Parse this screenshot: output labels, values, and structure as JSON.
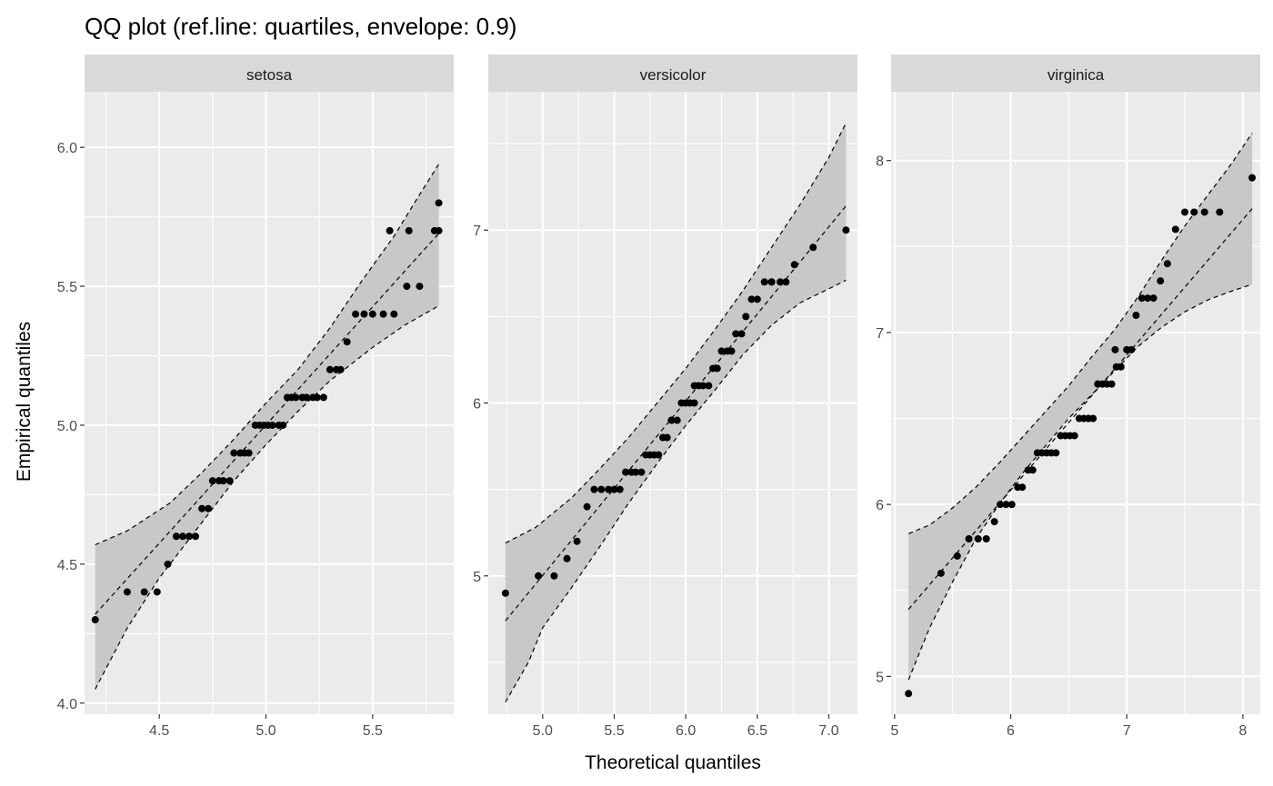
{
  "chart_data": {
    "type": "scatter",
    "title": "QQ plot (ref.line: quartiles, envelope: 0.9)",
    "xlabel": "Theoretical quantiles",
    "ylabel": "Empirical quantiles",
    "grid": true,
    "legend": "none",
    "colors": {
      "panel_bg": "#ebebeb",
      "strip_bg": "#d9d9d9",
      "grid": "#ffffff",
      "point": "#000000",
      "envelope": "#c8c8c8",
      "line": "#000000"
    },
    "panels": [
      {
        "name": "setosa",
        "xlim": [
          4.15,
          5.88
        ],
        "ylim": [
          3.96,
          6.2
        ],
        "xticks": [
          4.5,
          5.0,
          5.5
        ],
        "xtick_labels": [
          "4.5",
          "5.0",
          "5.5"
        ],
        "yticks": [
          4.0,
          4.5,
          5.0,
          5.5,
          6.0
        ],
        "ytick_labels": [
          "4.0",
          "4.5",
          "5.0",
          "5.5",
          "6.0"
        ],
        "ref_line": {
          "x": [
            4.2,
            5.81
          ],
          "y": [
            4.32,
            5.69
          ]
        },
        "envelope_upper": [
          [
            4.2,
            4.57
          ],
          [
            4.35,
            4.62
          ],
          [
            4.55,
            4.72
          ],
          [
            4.7,
            4.83
          ],
          [
            4.85,
            4.95
          ],
          [
            5.0,
            5.08
          ],
          [
            5.15,
            5.2
          ],
          [
            5.3,
            5.35
          ],
          [
            5.45,
            5.52
          ],
          [
            5.6,
            5.68
          ],
          [
            5.72,
            5.83
          ],
          [
            5.81,
            5.94
          ]
        ],
        "envelope_lower": [
          [
            4.2,
            4.05
          ],
          [
            4.35,
            4.27
          ],
          [
            4.5,
            4.45
          ],
          [
            4.7,
            4.65
          ],
          [
            4.85,
            4.8
          ],
          [
            5.0,
            4.93
          ],
          [
            5.15,
            5.05
          ],
          [
            5.3,
            5.16
          ],
          [
            5.5,
            5.28
          ],
          [
            5.65,
            5.36
          ],
          [
            5.81,
            5.43
          ]
        ],
        "points": [
          [
            4.2,
            4.3
          ],
          [
            4.35,
            4.4
          ],
          [
            4.43,
            4.4
          ],
          [
            4.49,
            4.4
          ],
          [
            4.54,
            4.5
          ],
          [
            4.58,
            4.6
          ],
          [
            4.61,
            4.6
          ],
          [
            4.64,
            4.6
          ],
          [
            4.67,
            4.6
          ],
          [
            4.7,
            4.7
          ],
          [
            4.73,
            4.7
          ],
          [
            4.75,
            4.8
          ],
          [
            4.78,
            4.8
          ],
          [
            4.8,
            4.8
          ],
          [
            4.83,
            4.8
          ],
          [
            4.85,
            4.9
          ],
          [
            4.88,
            4.9
          ],
          [
            4.9,
            4.9
          ],
          [
            4.92,
            4.9
          ],
          [
            4.95,
            5.0
          ],
          [
            4.97,
            5.0
          ],
          [
            4.99,
            5.0
          ],
          [
            5.01,
            5.0
          ],
          [
            5.03,
            5.0
          ],
          [
            5.06,
            5.0
          ],
          [
            5.08,
            5.0
          ],
          [
            5.1,
            5.1
          ],
          [
            5.12,
            5.1
          ],
          [
            5.14,
            5.1
          ],
          [
            5.17,
            5.1
          ],
          [
            5.19,
            5.1
          ],
          [
            5.22,
            5.1
          ],
          [
            5.24,
            5.1
          ],
          [
            5.27,
            5.1
          ],
          [
            5.3,
            5.2
          ],
          [
            5.33,
            5.2
          ],
          [
            5.35,
            5.2
          ],
          [
            5.38,
            5.3
          ],
          [
            5.42,
            5.4
          ],
          [
            5.46,
            5.4
          ],
          [
            5.5,
            5.4
          ],
          [
            5.55,
            5.4
          ],
          [
            5.6,
            5.4
          ],
          [
            5.66,
            5.5
          ],
          [
            5.72,
            5.5
          ],
          [
            5.79,
            5.7
          ],
          [
            5.81,
            5.7
          ],
          [
            5.58,
            5.7
          ],
          [
            5.67,
            5.7
          ],
          [
            5.81,
            5.8
          ]
        ]
      },
      {
        "name": "versicolor",
        "xlim": [
          4.62,
          7.2
        ],
        "ylim": [
          4.2,
          7.8
        ],
        "xticks": [
          5.0,
          5.5,
          6.0,
          6.5,
          7.0
        ],
        "xtick_labels": [
          "5.0",
          "5.5",
          "6.0",
          "6.5",
          "7.0"
        ],
        "yticks": [
          5,
          6,
          7
        ],
        "ytick_labels": [
          "5",
          "6",
          "7"
        ],
        "ref_line": {
          "x": [
            4.74,
            7.12
          ],
          "y": [
            4.74,
            7.14
          ]
        },
        "envelope_upper": [
          [
            4.74,
            5.19
          ],
          [
            4.95,
            5.28
          ],
          [
            5.2,
            5.45
          ],
          [
            5.4,
            5.62
          ],
          [
            5.6,
            5.8
          ],
          [
            5.8,
            6.0
          ],
          [
            6.0,
            6.2
          ],
          [
            6.2,
            6.42
          ],
          [
            6.4,
            6.65
          ],
          [
            6.6,
            6.9
          ],
          [
            6.8,
            7.15
          ],
          [
            7.0,
            7.42
          ],
          [
            7.12,
            7.62
          ]
        ],
        "envelope_lower": [
          [
            4.74,
            4.27
          ],
          [
            4.9,
            4.5
          ],
          [
            5.0,
            4.7
          ],
          [
            5.2,
            4.93
          ],
          [
            5.4,
            5.17
          ],
          [
            5.6,
            5.42
          ],
          [
            5.8,
            5.65
          ],
          [
            6.0,
            5.87
          ],
          [
            6.2,
            6.07
          ],
          [
            6.4,
            6.28
          ],
          [
            6.6,
            6.45
          ],
          [
            6.8,
            6.58
          ],
          [
            7.0,
            6.66
          ],
          [
            7.12,
            6.71
          ]
        ],
        "points": [
          [
            4.74,
            4.9
          ],
          [
            4.97,
            5.0
          ],
          [
            5.08,
            5.0
          ],
          [
            5.17,
            5.1
          ],
          [
            5.24,
            5.2
          ],
          [
            5.31,
            5.4
          ],
          [
            5.36,
            5.5
          ],
          [
            5.41,
            5.5
          ],
          [
            5.46,
            5.5
          ],
          [
            5.5,
            5.5
          ],
          [
            5.54,
            5.5
          ],
          [
            5.58,
            5.6
          ],
          [
            5.62,
            5.6
          ],
          [
            5.65,
            5.6
          ],
          [
            5.69,
            5.6
          ],
          [
            5.72,
            5.7
          ],
          [
            5.75,
            5.7
          ],
          [
            5.78,
            5.7
          ],
          [
            5.81,
            5.7
          ],
          [
            5.84,
            5.8
          ],
          [
            5.87,
            5.8
          ],
          [
            5.9,
            5.9
          ],
          [
            5.94,
            5.9
          ],
          [
            5.97,
            6.0
          ],
          [
            6.0,
            6.0
          ],
          [
            6.03,
            6.0
          ],
          [
            6.06,
            6.0
          ],
          [
            6.09,
            6.1
          ],
          [
            6.12,
            6.1
          ],
          [
            6.16,
            6.1
          ],
          [
            6.19,
            6.2
          ],
          [
            6.22,
            6.2
          ],
          [
            6.25,
            6.3
          ],
          [
            6.29,
            6.3
          ],
          [
            6.32,
            6.3
          ],
          [
            6.35,
            6.4
          ],
          [
            6.39,
            6.4
          ],
          [
            6.42,
            6.5
          ],
          [
            6.46,
            6.6
          ],
          [
            6.5,
            6.6
          ],
          [
            6.55,
            6.7
          ],
          [
            6.6,
            6.7
          ],
          [
            6.66,
            6.7
          ],
          [
            6.76,
            6.8
          ],
          [
            6.89,
            6.9
          ],
          [
            7.12,
            7.0
          ],
          [
            6.6,
            6.7
          ],
          [
            6.7,
            6.7
          ],
          [
            5.9,
            5.9
          ],
          [
            6.06,
            6.1
          ]
        ]
      },
      {
        "name": "virginica",
        "xlim": [
          4.97,
          8.15
        ],
        "ylim": [
          4.78,
          8.4
        ],
        "xticks": [
          5,
          6,
          7,
          8
        ],
        "xtick_labels": [
          "5",
          "6",
          "7",
          "8"
        ],
        "yticks": [
          5,
          6,
          7,
          8
        ],
        "ytick_labels": [
          "5",
          "6",
          "7",
          "8"
        ],
        "ref_line": {
          "x": [
            5.12,
            8.08
          ],
          "y": [
            5.39,
            7.72
          ]
        },
        "envelope_upper": [
          [
            5.12,
            5.83
          ],
          [
            5.3,
            5.88
          ],
          [
            5.5,
            5.98
          ],
          [
            5.7,
            6.1
          ],
          [
            5.9,
            6.24
          ],
          [
            6.1,
            6.39
          ],
          [
            6.3,
            6.54
          ],
          [
            6.5,
            6.69
          ],
          [
            6.7,
            6.86
          ],
          [
            6.9,
            7.02
          ],
          [
            7.1,
            7.21
          ],
          [
            7.3,
            7.42
          ],
          [
            7.5,
            7.62
          ],
          [
            7.7,
            7.8
          ],
          [
            7.9,
            7.98
          ],
          [
            8.08,
            8.16
          ]
        ],
        "envelope_lower": [
          [
            5.12,
            4.98
          ],
          [
            5.3,
            5.28
          ],
          [
            5.5,
            5.55
          ],
          [
            5.7,
            5.8
          ],
          [
            5.9,
            6.0
          ],
          [
            6.1,
            6.18
          ],
          [
            6.3,
            6.34
          ],
          [
            6.5,
            6.5
          ],
          [
            6.7,
            6.64
          ],
          [
            6.9,
            6.78
          ],
          [
            7.1,
            6.92
          ],
          [
            7.3,
            7.03
          ],
          [
            7.5,
            7.12
          ],
          [
            7.7,
            7.19
          ],
          [
            7.9,
            7.24
          ],
          [
            8.08,
            7.28
          ]
        ],
        "points": [
          [
            5.12,
            4.9
          ],
          [
            5.4,
            5.6
          ],
          [
            5.54,
            5.7
          ],
          [
            5.64,
            5.8
          ],
          [
            5.72,
            5.8
          ],
          [
            5.79,
            5.8
          ],
          [
            5.86,
            5.9
          ],
          [
            5.91,
            6.0
          ],
          [
            5.96,
            6.0
          ],
          [
            6.01,
            6.0
          ],
          [
            6.06,
            6.1
          ],
          [
            6.1,
            6.1
          ],
          [
            6.15,
            6.2
          ],
          [
            6.19,
            6.2
          ],
          [
            6.23,
            6.3
          ],
          [
            6.27,
            6.3
          ],
          [
            6.31,
            6.3
          ],
          [
            6.35,
            6.3
          ],
          [
            6.39,
            6.3
          ],
          [
            6.43,
            6.4
          ],
          [
            6.47,
            6.4
          ],
          [
            6.51,
            6.4
          ],
          [
            6.55,
            6.4
          ],
          [
            6.59,
            6.5
          ],
          [
            6.63,
            6.5
          ],
          [
            6.67,
            6.5
          ],
          [
            6.71,
            6.5
          ],
          [
            6.75,
            6.7
          ],
          [
            6.79,
            6.7
          ],
          [
            6.83,
            6.7
          ],
          [
            6.87,
            6.7
          ],
          [
            6.91,
            6.8
          ],
          [
            6.95,
            6.8
          ],
          [
            7.0,
            6.9
          ],
          [
            7.04,
            6.9
          ],
          [
            7.08,
            7.1
          ],
          [
            7.13,
            7.2
          ],
          [
            7.18,
            7.2
          ],
          [
            7.23,
            7.2
          ],
          [
            7.29,
            7.3
          ],
          [
            7.35,
            7.4
          ],
          [
            7.42,
            7.6
          ],
          [
            7.5,
            7.7
          ],
          [
            7.58,
            7.7
          ],
          [
            7.67,
            7.7
          ],
          [
            7.8,
            7.7
          ],
          [
            8.08,
            7.9
          ],
          [
            6.9,
            6.9
          ],
          [
            6.75,
            6.7
          ],
          [
            6.67,
            6.5
          ]
        ]
      }
    ]
  }
}
